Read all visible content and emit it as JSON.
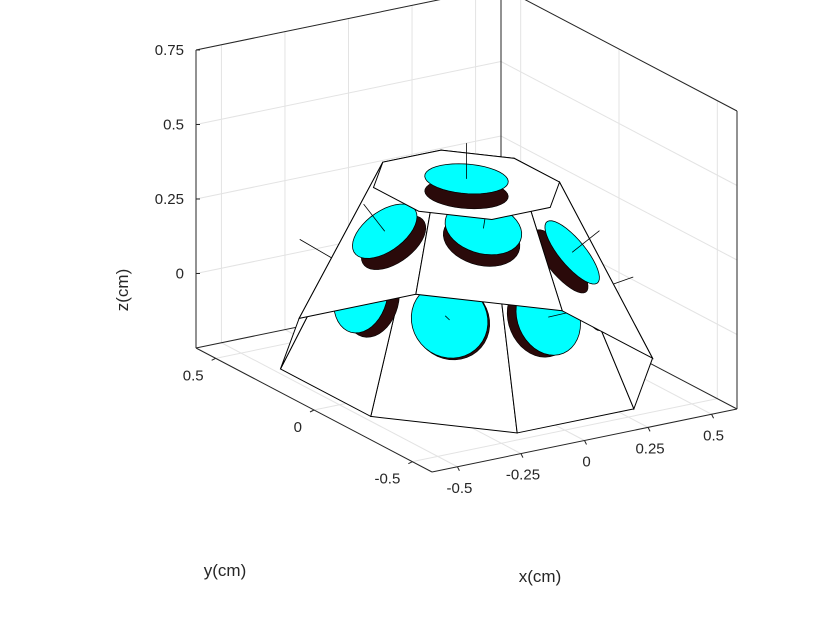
{
  "chart_data": {
    "type": "3d-surface",
    "xlabel": "x(cm)",
    "ylabel": "y(cm)",
    "zlabel": "z(cm)",
    "x_ticks": [
      "-0.5",
      "-0.25",
      "0",
      "0.25",
      "0.5"
    ],
    "y_ticks": [
      "-0.5",
      "0",
      "0.5"
    ],
    "z_ticks": [
      "0",
      "0.25",
      "0.5",
      "0.75"
    ],
    "xlim": [
      -0.6,
      0.6
    ],
    "ylim": [
      -0.6,
      0.6
    ],
    "zlim": [
      -0.25,
      0.75
    ],
    "grid": true,
    "object": {
      "kind": "truncated octagonal pyramid dome",
      "base_radius": 0.6,
      "top_radius": 0.3,
      "base_z": -0.2,
      "top_z": 0.4,
      "side_faces": 8,
      "sensor_count": 9,
      "sensor_color": "#00ffff",
      "sensor_side_color": "#2a0a0a",
      "face_color": "#ffffff",
      "edge_color": "#000000"
    }
  }
}
